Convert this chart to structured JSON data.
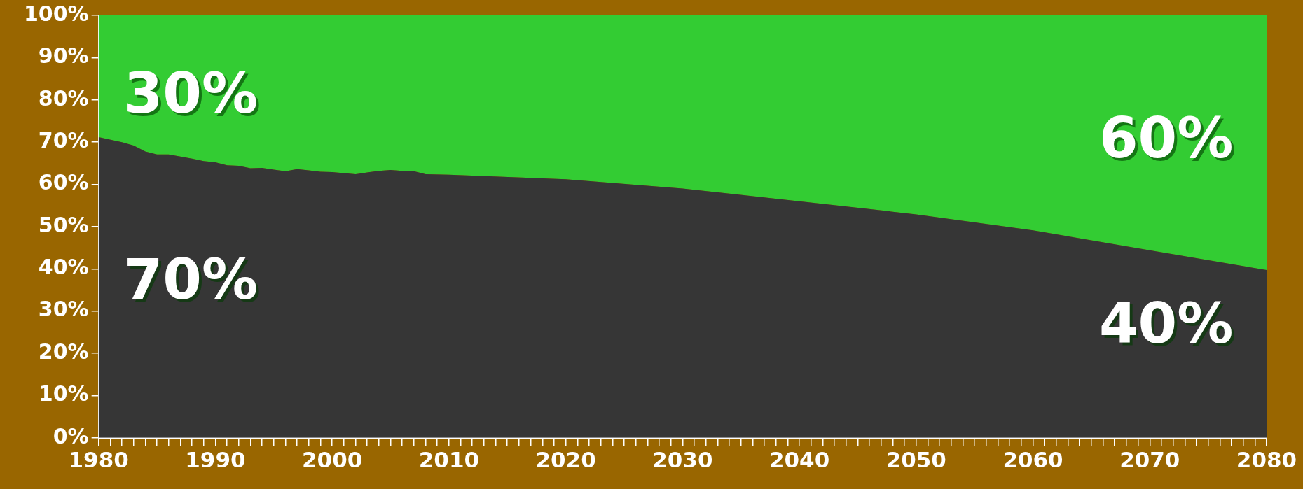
{
  "chart_data": {
    "type": "area",
    "stacked": true,
    "x": [
      1980,
      1982,
      1983,
      1984,
      1985,
      1986,
      1987,
      1988,
      1989,
      1990,
      1991,
      1992,
      1993,
      1994,
      1995,
      1996,
      1997,
      1998,
      1999,
      2000,
      2002,
      2003,
      2004,
      2005,
      2006,
      2007,
      2008,
      2010,
      2020,
      2030,
      2040,
      2050,
      2060,
      2070,
      2080
    ],
    "series": [
      {
        "color": "#363636",
        "values": [
          71.2,
          70,
          69.2,
          67.8,
          67.1,
          67.1,
          66.6,
          66.1,
          65.5,
          65.2,
          64.5,
          64.4,
          63.8,
          63.9,
          63.5,
          63.1,
          63.6,
          63.3,
          63.0,
          62.9,
          62.4,
          62.8,
          63.2,
          63.4,
          63.2,
          63.1,
          62.4,
          62.3,
          61.2,
          59.0,
          56.0,
          52.9,
          49.1,
          44.4,
          39.7
        ]
      },
      {
        "color": "#33cc33",
        "values": [
          28.8,
          30,
          30.8,
          32.2,
          32.9,
          32.9,
          33.4,
          33.9,
          34.5,
          34.8,
          35.5,
          35.6,
          36.2,
          36.1,
          36.5,
          36.9,
          36.4,
          36.7,
          37.0,
          37.1,
          37.6,
          37.2,
          36.8,
          36.6,
          36.8,
          36.9,
          37.6,
          37.7,
          38.8,
          41.0,
          44.0,
          47.1,
          50.9,
          55.6,
          60.3
        ]
      }
    ],
    "xlim": [
      1980,
      2080
    ],
    "xticks": [
      1980,
      {
        "value": 1981,
        "label": null
      },
      {
        "value": 1982,
        "label": null
      },
      {
        "value": 1983,
        "label": null
      },
      {
        "value": 1984,
        "label": null
      },
      {
        "value": 1985,
        "label": null
      },
      {
        "value": 1986,
        "label": null
      },
      {
        "value": 1987,
        "label": null
      },
      {
        "value": 1988,
        "label": null
      },
      {
        "value": 1989,
        "label": null
      },
      1990,
      {
        "value": 1991,
        "label": null
      },
      {
        "value": 1992,
        "label": null
      },
      {
        "value": 1993,
        "label": null
      },
      {
        "value": 1994,
        "label": null
      },
      {
        "value": 1995,
        "label": null
      },
      {
        "value": 1996,
        "label": null
      },
      {
        "value": 1997,
        "label": null
      },
      {
        "value": 1998,
        "label": null
      },
      {
        "value": 1999,
        "label": null
      },
      2000,
      {
        "value": 2001,
        "label": null
      },
      {
        "value": 2002,
        "label": null
      },
      {
        "value": 2003,
        "label": null
      },
      {
        "value": 2004,
        "label": null
      },
      {
        "value": 2005,
        "label": null
      },
      {
        "value": 2006,
        "label": null
      },
      {
        "value": 2007,
        "label": null
      },
      {
        "value": 2008,
        "label": null
      },
      {
        "value": 2009,
        "label": null
      },
      2010,
      {
        "value": 2011,
        "label": null
      },
      {
        "value": 2012,
        "label": null
      },
      {
        "value": 2013,
        "label": null
      },
      {
        "value": 2014,
        "label": null
      },
      {
        "value": 2015,
        "label": null
      },
      {
        "value": 2016,
        "label": null
      },
      {
        "value": 2017,
        "label": null
      },
      {
        "value": 2018,
        "label": null
      },
      {
        "value": 2019,
        "label": null
      },
      2020,
      {
        "value": 2021,
        "label": null
      },
      {
        "value": 2022,
        "label": null
      },
      {
        "value": 2023,
        "label": null
      },
      {
        "value": 2024,
        "label": null
      },
      {
        "value": 2025,
        "label": null
      },
      {
        "value": 2026,
        "label": null
      },
      {
        "value": 2027,
        "label": null
      },
      {
        "value": 2028,
        "label": null
      },
      {
        "value": 2029,
        "label": null
      },
      2030,
      {
        "value": 2031,
        "label": null
      },
      {
        "value": 2032,
        "label": null
      },
      {
        "value": 2033,
        "label": null
      },
      {
        "value": 2034,
        "label": null
      },
      {
        "value": 2035,
        "label": null
      },
      {
        "value": 2036,
        "label": null
      },
      {
        "value": 2037,
        "label": null
      },
      {
        "value": 2038,
        "label": null
      },
      {
        "value": 2039,
        "label": null
      },
      2040,
      {
        "value": 2041,
        "label": null
      },
      {
        "value": 2042,
        "label": null
      },
      {
        "value": 2043,
        "label": null
      },
      {
        "value": 2044,
        "label": null
      },
      {
        "value": 2045,
        "label": null
      },
      {
        "value": 2046,
        "label": null
      },
      {
        "value": 2047,
        "label": null
      },
      {
        "value": 2048,
        "label": null
      },
      {
        "value": 2049,
        "label": null
      },
      2050,
      {
        "value": 2051,
        "label": null
      },
      {
        "value": 2052,
        "label": null
      },
      {
        "value": 2053,
        "label": null
      },
      {
        "value": 2054,
        "label": null
      },
      {
        "value": 2055,
        "label": null
      },
      {
        "value": 2056,
        "label": null
      },
      {
        "value": 2057,
        "label": null
      },
      {
        "value": 2058,
        "label": null
      },
      {
        "value": 2059,
        "label": null
      },
      2060,
      {
        "value": 2061,
        "label": null
      },
      {
        "value": 2062,
        "label": null
      },
      {
        "value": 2063,
        "label": null
      },
      {
        "value": 2064,
        "label": null
      },
      {
        "value": 2065,
        "label": null
      },
      {
        "value": 2066,
        "label": null
      },
      {
        "value": 2067,
        "label": null
      },
      {
        "value": 2068,
        "label": null
      },
      {
        "value": 2069,
        "label": null
      },
      2070,
      {
        "value": 2071,
        "label": null
      },
      {
        "value": 2072,
        "label": null
      },
      {
        "value": 2073,
        "label": null
      },
      {
        "value": 2074,
        "label": null
      },
      {
        "value": 2075,
        "label": null
      },
      {
        "value": 2076,
        "label": null
      },
      {
        "value": 2077,
        "label": null
      },
      {
        "value": 2078,
        "label": null
      },
      {
        "value": 2079,
        "label": null
      },
      2080
    ],
    "ylim": [
      0,
      100
    ],
    "yticks": [
      {
        "value": 0,
        "label": "0%"
      },
      {
        "value": 10,
        "label": "10%"
      },
      {
        "value": 20,
        "label": "20%"
      },
      {
        "value": 30,
        "label": "30%"
      },
      {
        "value": 40,
        "label": "40%"
      },
      {
        "value": 50,
        "label": "50%"
      },
      {
        "value": 60,
        "label": "60%"
      },
      {
        "value": 70,
        "label": "70%"
      },
      {
        "value": 80,
        "label": "80%"
      },
      {
        "value": 90,
        "label": "90%"
      },
      {
        "value": 100,
        "label": "100%"
      }
    ],
    "grid": false,
    "legend": false,
    "annotations": [
      "30%",
      "70%",
      "60%",
      "40%"
    ]
  }
}
